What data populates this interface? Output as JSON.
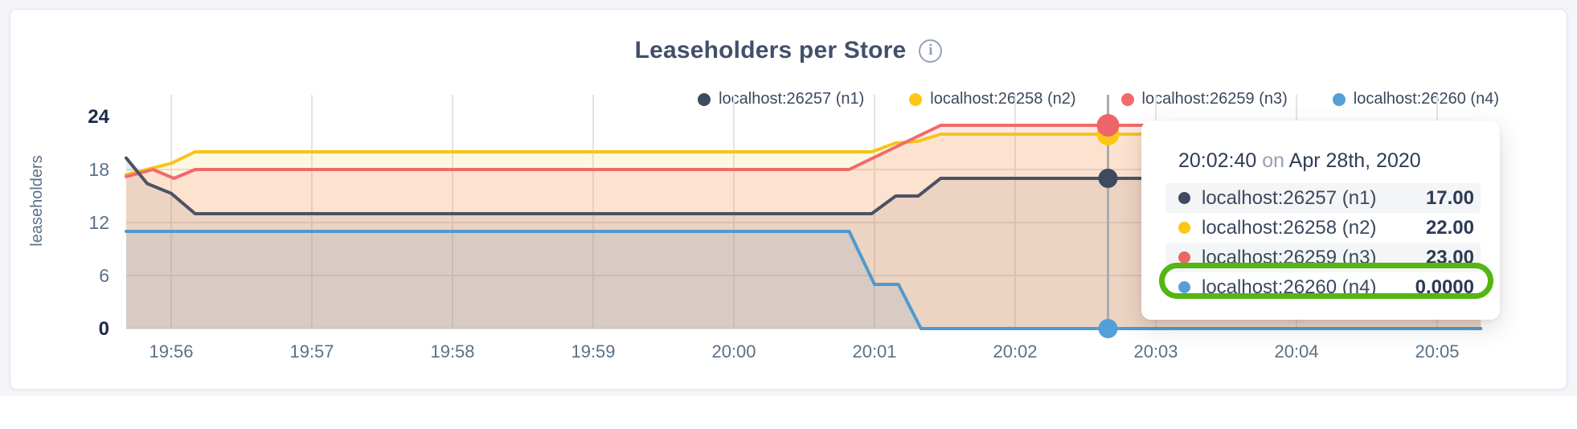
{
  "colors": {
    "accent_green_annotation": "#55b513",
    "grid": "#e5e3e9",
    "hover_line": "#a7acb4",
    "card_background": "#ffffff",
    "page_background": "#f3f5f9"
  },
  "header": {
    "title": "Leaseholders per Store",
    "info_glyph": "i"
  },
  "legend": {
    "items": [
      {
        "label": "localhost:26257 (n1)",
        "color": "#3e4a5e"
      },
      {
        "label": "localhost:26258 (n2)",
        "color": "#fdc713"
      },
      {
        "label": "localhost:26259 (n3)",
        "color": "#f06b6b"
      },
      {
        "label": "localhost:26260 (n4)",
        "color": "#549fd7"
      }
    ]
  },
  "chart_data": {
    "type": "area",
    "title": "Leaseholders per Store",
    "xlabel": "",
    "ylabel": "leaseholders",
    "ylim": [
      0,
      24
    ],
    "y_ticks": [
      0,
      6,
      12,
      18,
      24
    ],
    "y_ticks_bold": [
      0,
      24
    ],
    "x_ticks": [
      "19:56",
      "19:57",
      "19:58",
      "19:59",
      "20:00",
      "20:01",
      "20:02",
      "20:03",
      "20:04",
      "20:05"
    ],
    "grid": true,
    "legend_position": "top-right",
    "series": [
      {
        "id": "n1",
        "name": "localhost:26257 (n1)",
        "color": "#4c5265",
        "dot_color": "#3e4a5e",
        "fill_opacity": 0.11,
        "dot_r": 12,
        "points": [
          [
            -0.32,
            19.3
          ],
          [
            -0.17,
            16.4
          ],
          [
            0,
            15.3
          ],
          [
            0.17,
            13
          ],
          [
            4.98,
            13
          ],
          [
            5.15,
            15
          ],
          [
            5.31,
            15
          ],
          [
            5.47,
            17
          ],
          [
            9.31,
            17
          ]
        ]
      },
      {
        "id": "n2",
        "name": "localhost:26258 (n2)",
        "color": "#f5c518",
        "dot_color": "#fdc713",
        "fill_opacity": 0.13,
        "dot_r": 14,
        "points": [
          [
            -0.32,
            17.4
          ],
          [
            0,
            18.7
          ],
          [
            0.17,
            20
          ],
          [
            4.98,
            20
          ],
          [
            5.15,
            21
          ],
          [
            5.31,
            21.2
          ],
          [
            5.47,
            22
          ],
          [
            9.31,
            22
          ]
        ]
      },
      {
        "id": "n3",
        "name": "localhost:26259 (n3)",
        "color": "#f06b6b",
        "dot_color": "#ee6567",
        "fill_opacity": 0.15,
        "dot_r": 14,
        "points": [
          [
            -0.32,
            17.2
          ],
          [
            -0.13,
            18
          ],
          [
            0.02,
            17
          ],
          [
            0.17,
            18
          ],
          [
            4.82,
            18
          ],
          [
            5.47,
            23
          ],
          [
            9.31,
            23
          ]
        ]
      },
      {
        "id": "n4",
        "name": "localhost:26260 (n4)",
        "color": "#4f9ace",
        "dot_color": "#549fd7",
        "fill_opacity": 0.13,
        "dot_r": 12,
        "points": [
          [
            -0.32,
            11
          ],
          [
            4.82,
            11
          ],
          [
            5.0,
            5
          ],
          [
            5.17,
            5
          ],
          [
            5.33,
            0
          ],
          [
            9.31,
            0
          ]
        ]
      }
    ],
    "hover": {
      "x_minutes": 6.66,
      "time": "20:02:40",
      "date": "Apr 28th, 2020",
      "values": [
        17,
        22,
        23,
        0
      ]
    }
  },
  "tooltip": {
    "time": "20:02:40",
    "on_word": "on",
    "date": "Apr 28th, 2020",
    "rows": [
      {
        "label": "localhost:26257 (n1)",
        "value": "17.00",
        "color": "#3e4a5e"
      },
      {
        "label": "localhost:26258 (n2)",
        "value": "22.00",
        "color": "#fdc713"
      },
      {
        "label": "localhost:26259 (n3)",
        "value": "23.00",
        "color": "#ee6567"
      },
      {
        "label": "localhost:26260 (n4)",
        "value": "0.0000",
        "color": "#549fd7"
      }
    ],
    "highlighted_row_index": 3
  }
}
